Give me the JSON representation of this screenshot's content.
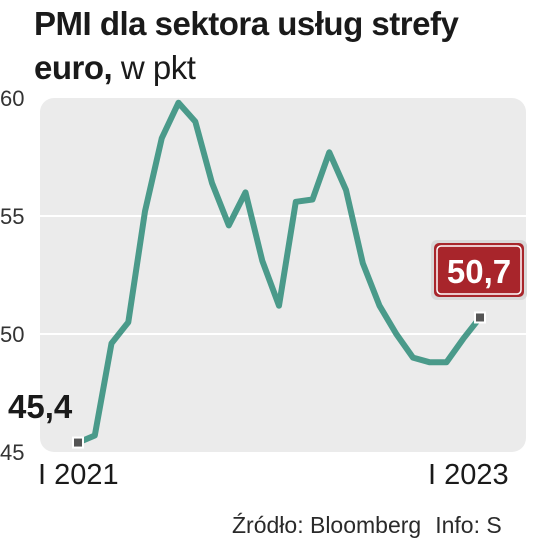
{
  "title": {
    "line1": "PMI dla sektora usług strefy",
    "line2_bold": "euro,",
    "line2_unit": " w pkt"
  },
  "footer": {
    "source": "Źródło: Bloomberg",
    "info": "Info: S"
  },
  "colors": {
    "line": "#4a9a8a",
    "plot_bg": "#ebebeb",
    "gridline": "#ffffff",
    "callout_bg": "#a8252b",
    "callout_text": "#ffffff",
    "marker": "#555555"
  },
  "chart_data": {
    "type": "line",
    "title": "PMI dla sektora usług strefy euro, w pkt",
    "xlabel": "",
    "ylabel": "",
    "ylim": [
      45,
      60
    ],
    "yticks": [
      45,
      50,
      55,
      60
    ],
    "ytick_labels": [
      "45",
      "50",
      "55",
      "60"
    ],
    "x_start_label": "I 2021",
    "x_end_label": "I 2023",
    "grid": true,
    "series": [
      {
        "values": [
          45.4,
          45.7,
          49.6,
          50.5,
          55.2,
          58.3,
          59.8,
          59.0,
          56.4,
          54.6,
          56.0,
          53.1,
          51.2,
          55.6,
          55.7,
          57.7,
          56.1,
          53.0,
          51.2,
          50.0,
          49.0,
          48.8,
          48.8,
          49.8,
          50.7
        ]
      }
    ],
    "annotations": [
      {
        "point": "first",
        "label": "45,4"
      },
      {
        "point": "last",
        "label": "50,7"
      }
    ]
  }
}
